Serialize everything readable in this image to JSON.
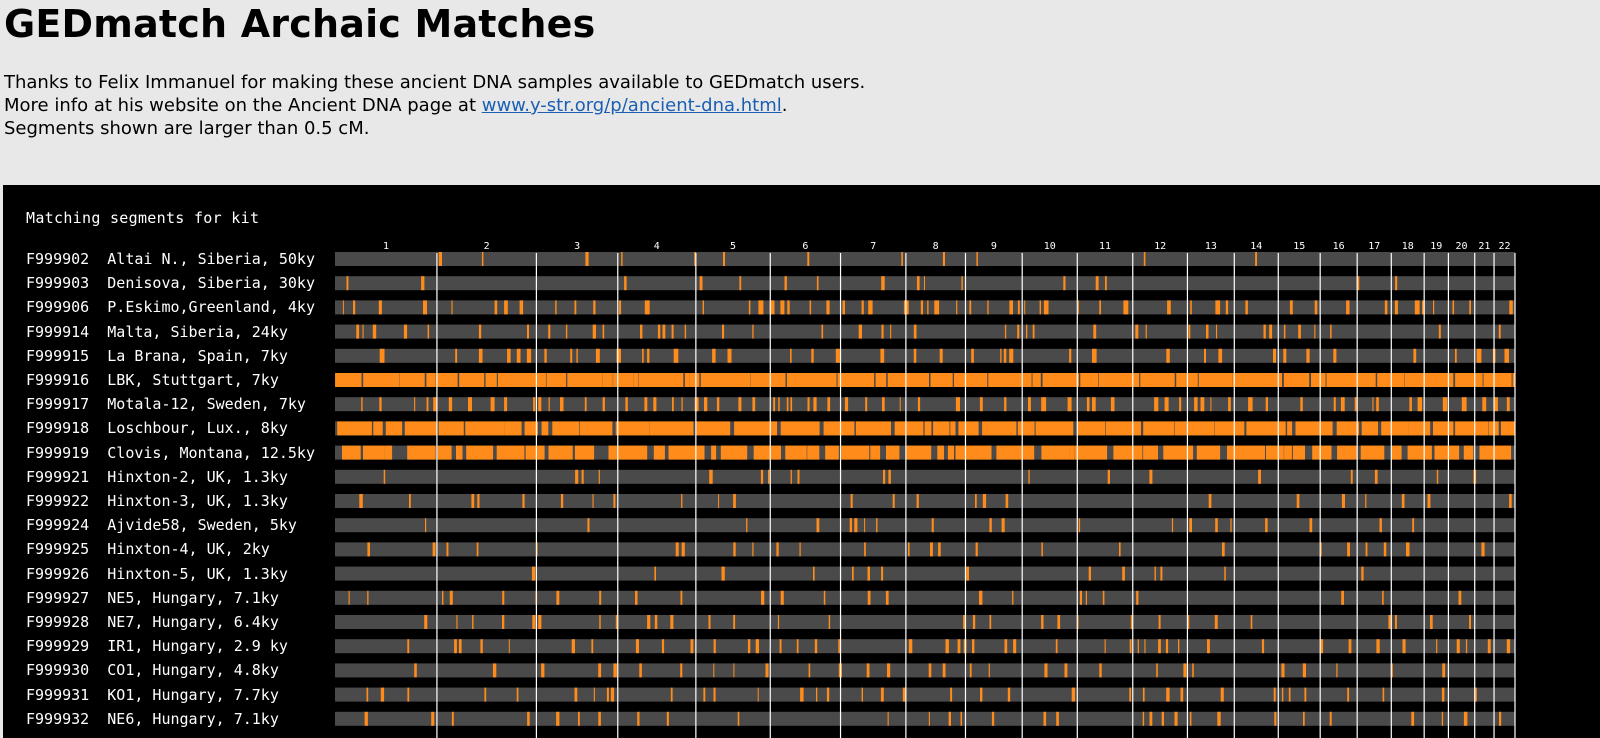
{
  "page": {
    "title": "GEDmatch Archaic Matches",
    "intro": {
      "line1": "Thanks to Felix Immanuel for making these ancient DNA samples available to GEDmatch users.",
      "line2_prefix": "More info at his website on the Ancient DNA page at ",
      "link_text": "www.y-str.org/p/ancient-dna.html",
      "line2_suffix": ".",
      "line3": "Segments shown are larger than 0.5 cM."
    }
  },
  "panel": {
    "caption": "Matching segments for kit"
  },
  "colors": {
    "background": "#000000",
    "track": "#4a4a4a",
    "segment": "#ff8c1a",
    "divider": "#ffffff",
    "label": "#ffffff"
  },
  "chromosomes": [
    {
      "label": "1",
      "length": 248
    },
    {
      "label": "2",
      "length": 242
    },
    {
      "label": "3",
      "length": 198
    },
    {
      "label": "4",
      "length": 190
    },
    {
      "label": "5",
      "length": 181
    },
    {
      "label": "6",
      "length": 171
    },
    {
      "label": "7",
      "length": 159
    },
    {
      "label": "8",
      "length": 145
    },
    {
      "label": "9",
      "length": 138
    },
    {
      "label": "10",
      "length": 134
    },
    {
      "label": "11",
      "length": 135
    },
    {
      "label": "12",
      "length": 133
    },
    {
      "label": "13",
      "length": 114
    },
    {
      "label": "14",
      "length": 107
    },
    {
      "label": "15",
      "length": 102
    },
    {
      "label": "16",
      "length": 90
    },
    {
      "label": "17",
      "length": 83
    },
    {
      "label": "18",
      "length": 80
    },
    {
      "label": "19",
      "length": 59
    },
    {
      "label": "20",
      "length": 64
    },
    {
      "label": "21",
      "length": 47
    },
    {
      "label": "22",
      "length": 51
    }
  ],
  "kits": [
    {
      "id": "F999902",
      "name": "Altai N., Siberia, 50ky",
      "density": 0.05
    },
    {
      "id": "F999903",
      "name": "Denisova, Siberia, 30ky",
      "density": 0.03
    },
    {
      "id": "F999906",
      "name": "P.Eskimo,Greenland, 4ky",
      "density": 0.45
    },
    {
      "id": "F999914",
      "name": "Malta, Siberia, 24ky",
      "density": 0.3
    },
    {
      "id": "F999915",
      "name": "La Brana, Spain, 7ky",
      "density": 0.4
    },
    {
      "id": "F999916",
      "name": "LBK, Stuttgart, 7ky",
      "density": 0.92
    },
    {
      "id": "F999917",
      "name": "Motala-12, Sweden, 7ky",
      "density": 0.55
    },
    {
      "id": "F999918",
      "name": "Loschbour, Lux., 8ky",
      "density": 0.82
    },
    {
      "id": "F999919",
      "name": "Clovis, Montana, 12.5ky",
      "density": 0.7
    },
    {
      "id": "F999921",
      "name": "Hinxton-2, UK, 1.3ky",
      "density": 0.1
    },
    {
      "id": "F999922",
      "name": "Hinxton-3, UK, 1.3ky",
      "density": 0.13
    },
    {
      "id": "F999924",
      "name": "Ajvide58, Sweden, 5ky",
      "density": 0.12
    },
    {
      "id": "F999925",
      "name": "Hinxton-4, UK, 2ky",
      "density": 0.17
    },
    {
      "id": "F999926",
      "name": "Hinxton-5, UK, 1.3ky",
      "density": 0.07
    },
    {
      "id": "F999927",
      "name": "NE5, Hungary, 7.1ky",
      "density": 0.2
    },
    {
      "id": "F999928",
      "name": "NE7, Hungary, 6.4ky",
      "density": 0.22
    },
    {
      "id": "F999929",
      "name": "IR1, Hungary, 2.9 ky",
      "density": 0.27
    },
    {
      "id": "F999930",
      "name": "CO1, Hungary, 4.8ky",
      "density": 0.25
    },
    {
      "id": "F999931",
      "name": "KO1, Hungary, 7.7ky",
      "density": 0.22
    },
    {
      "id": "F999932",
      "name": "NE6, Hungary, 7.1ky",
      "density": 0.24
    }
  ]
}
